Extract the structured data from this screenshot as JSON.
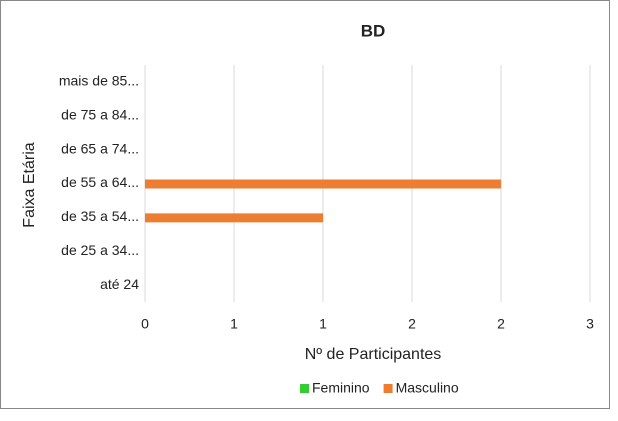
{
  "chart_data": {
    "type": "bar",
    "orientation": "horizontal",
    "title": "BD",
    "x_label": "Nº de Participantes",
    "y_label": "Faixa Etária",
    "categories": [
      "mais de 85...",
      "de 75 a 84...",
      "de 65 a 74...",
      "de 55 a 64...",
      "de 35 a 54...",
      "de 25 a 34...",
      "até 24"
    ],
    "series": [
      {
        "name": "Feminino",
        "color": "#33cc33",
        "values": [
          0,
          0,
          0,
          0,
          0,
          0,
          0
        ]
      },
      {
        "name": "Masculino",
        "color": "#ed7d31",
        "values": [
          0,
          0,
          0,
          2,
          1,
          0,
          0
        ]
      }
    ],
    "xlim": [
      0,
      2.5
    ],
    "xticks": [
      0,
      {
        "value": 0.5,
        "label": "1"
      },
      1,
      {
        "value": 1.5,
        "label": "2"
      },
      2,
      {
        "value": 2.5,
        "label": "3"
      }
    ],
    "grid": true,
    "legend": "bottom"
  }
}
